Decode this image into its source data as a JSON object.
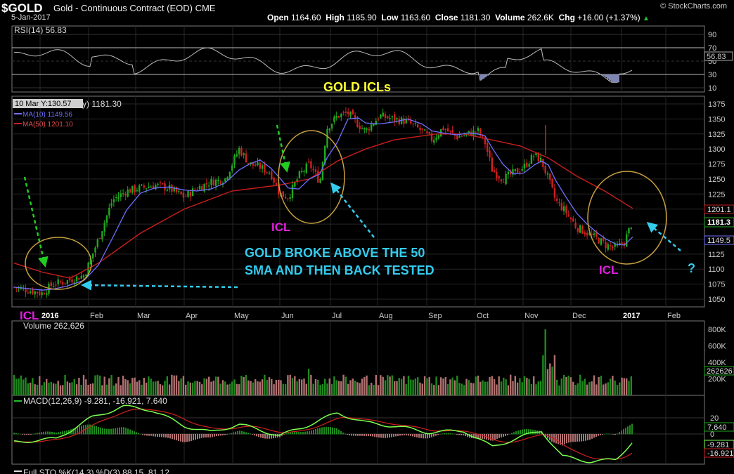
{
  "header": {
    "symbol": "$GOLD",
    "description": "Gold - Continuous Contract (EOD)",
    "exchange": "CME",
    "date": "5-Jan-2017",
    "copyright": "© StockCharts.com",
    "ohlc": {
      "open_label": "Open",
      "open": "1164.60",
      "high_label": "High",
      "high": "1185.90",
      "low_label": "Low",
      "low": "1163.60",
      "close_label": "Close",
      "close": "1181.30",
      "volume_label": "Volume",
      "volume": "262.6K",
      "chg_label": "Chg",
      "chg": "+16.00 (+1.37%)"
    }
  },
  "rsi_panel": {
    "label": "RSI(14) 56.83",
    "ticks": [
      "90",
      "70",
      "50",
      "30",
      "10"
    ],
    "tick_values": [
      90,
      70,
      50,
      30,
      10
    ],
    "current": "56.83"
  },
  "price_panel": {
    "title": "GOLD ICLs",
    "legend_price": "1181.30",
    "legend_ma10": "MA(10) 1149.56",
    "legend_ma50": "MA(50) 1201.10",
    "crosshair_tip": "10 Mar Y:130.57",
    "y_ticks": [
      "1375",
      "1350",
      "1325",
      "1300",
      "1275",
      "1250",
      "1225",
      "1200",
      "1175",
      "1150",
      "1125",
      "1100",
      "1075",
      "1050"
    ],
    "y_values": [
      1375,
      1350,
      1325,
      1300,
      1275,
      1250,
      1225,
      1200,
      1175,
      1150,
      1125,
      1100,
      1075,
      1050
    ],
    "tag_ma50": "1201.1",
    "tag_close": "1181.3",
    "tag_ma10": "1149.5",
    "x_labels": [
      "2016",
      "Feb",
      "Mar",
      "Apr",
      "May",
      "Jun",
      "Jul",
      "Aug",
      "Sep",
      "Oct",
      "Nov",
      "Dec",
      "2017",
      "Feb"
    ],
    "annotations": {
      "icl1": "ICL",
      "icl2": "ICL",
      "icl3": "ICL",
      "broke_line1": "GOLD BROKE ABOVE THE 50",
      "broke_line2": "SMA AND THEN BACK TESTED",
      "question": "?"
    }
  },
  "volume_panel": {
    "label": "Volume 262,626",
    "ticks": [
      "800K",
      "600K",
      "400K",
      "200K"
    ],
    "tick_values": [
      800,
      600,
      400,
      200
    ],
    "current": "262626"
  },
  "macd_panel": {
    "label": "MACD(12,26,9) -9.281, -16.921, 7.640",
    "ticks": [
      "20",
      "0"
    ],
    "tick_values": [
      20,
      0
    ],
    "tag_hist": "7.640",
    "tag_macd": "-9.281",
    "tag_signal": "-16.921"
  },
  "sto_panel": {
    "label": "Full STO %K(14,3) %D(3) 88.15, 81.12"
  },
  "colors": {
    "background": "#000000",
    "grid": "#2a2a2a",
    "up_candle": "#1fa81f",
    "down_candle": "#d02020",
    "ma10": "#6f6fff",
    "ma50": "#c81e1e",
    "title_yellow": "#ffff33",
    "icl_magenta": "#e020e0",
    "annotation_cyan": "#33ccee",
    "green_arrow": "#22cc22",
    "circle_gold": "#c8a040"
  },
  "chart_data": {
    "type": "line",
    "title": "GOLD ICLs",
    "symbol": "$GOLD",
    "x": [
      "2016",
      "Feb",
      "Mar",
      "Apr",
      "May",
      "Jun",
      "Jul",
      "Aug",
      "Sep",
      "Oct",
      "Nov",
      "Dec",
      "2017"
    ],
    "series": [
      {
        "name": "Close",
        "values": [
          1070,
          1085,
          1215,
          1235,
          1265,
          1235,
          1335,
          1345,
          1320,
          1310,
          1255,
          1130,
          1181
        ]
      },
      {
        "name": "MA(10)",
        "values": [
          1075,
          1080,
          1195,
          1235,
          1255,
          1225,
          1320,
          1340,
          1325,
          1315,
          1265,
          1145,
          1150
        ]
      },
      {
        "name": "MA(50)",
        "values": [
          1100,
          1085,
          1135,
          1200,
          1235,
          1240,
          1290,
          1320,
          1330,
          1320,
          1290,
          1230,
          1201
        ]
      }
    ],
    "ylim": [
      1040,
      1385
    ]
  }
}
